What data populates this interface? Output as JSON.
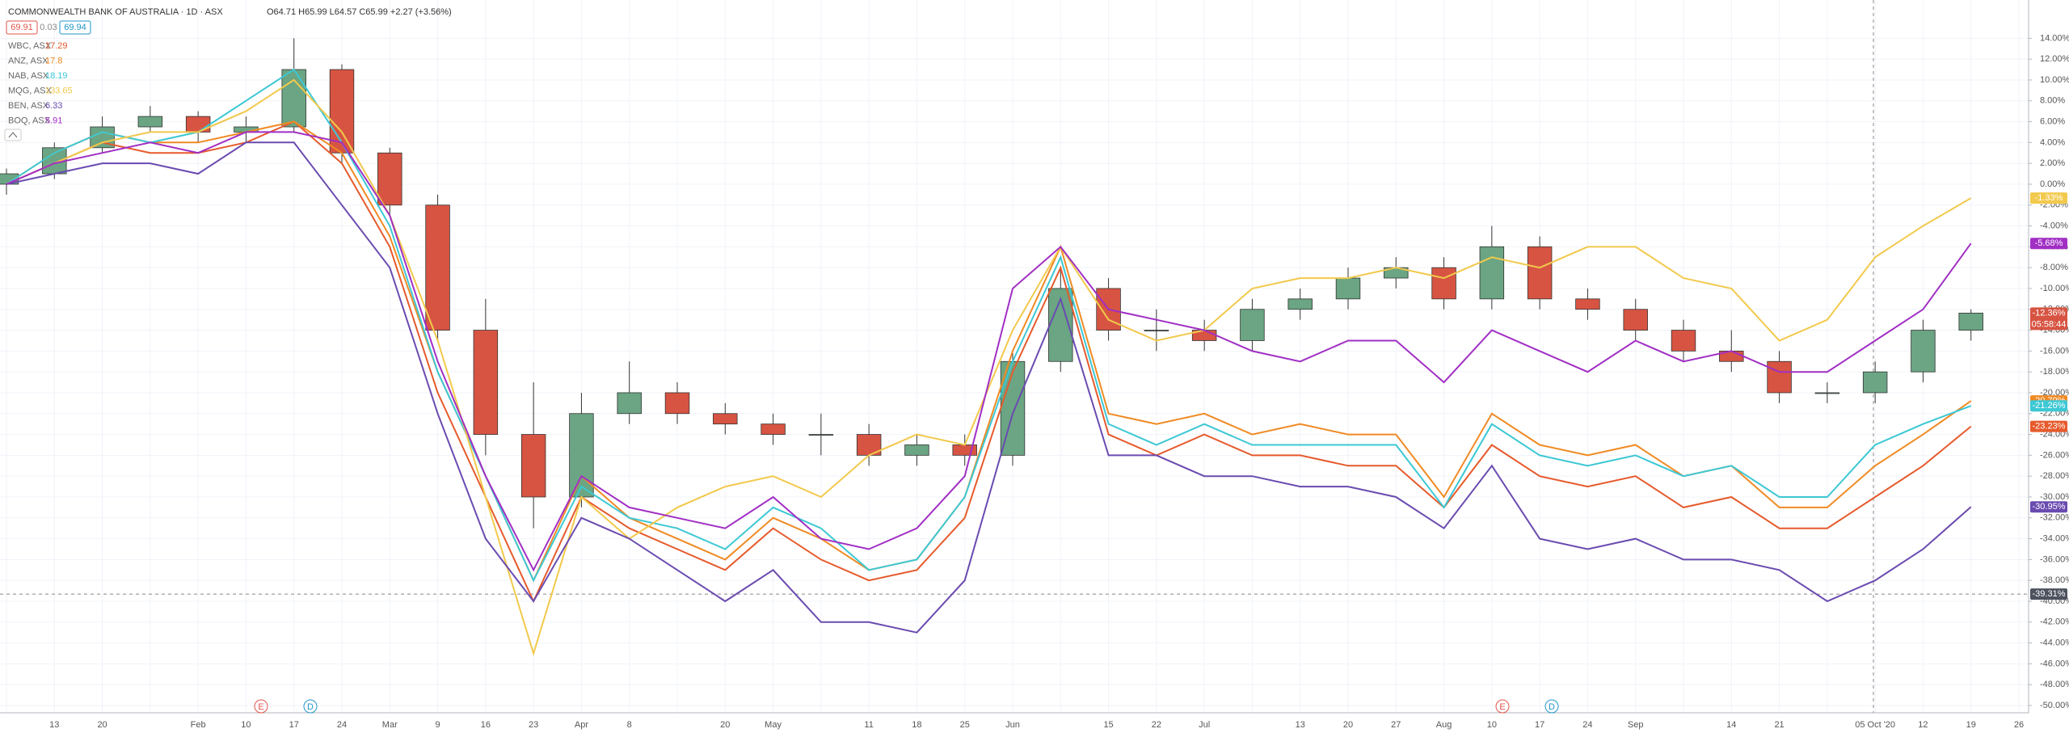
{
  "chart_data": {
    "type": "candlestick-compare",
    "title": "COMMONWEALTH BANK OF AUSTRALIA · 1D · ASX",
    "ohlc_text": "O64.71 H65.99 L64.57 C65.99 +2.27 (+3.56%)",
    "bid": 69.91,
    "spread": 0.03,
    "ask": 69.94,
    "categories": [
      null,
      "13",
      "20",
      null,
      "Feb",
      "10",
      "17",
      "24",
      "Mar",
      "9",
      "16",
      "23",
      "Apr",
      "8",
      null,
      "20",
      "May",
      null,
      "11",
      "18",
      "25",
      "Jun",
      null,
      "15",
      "22",
      "Jul",
      null,
      "13",
      "20",
      "27",
      "Aug",
      "10",
      "17",
      "24",
      "Sep",
      null,
      "14",
      "21",
      null,
      "05 Oct '20",
      "12",
      "19",
      "26"
    ],
    "ylim": [
      -50.7,
      17.67
    ],
    "yticks": [
      {
        "value": 14,
        "label": "14.00%"
      },
      {
        "value": 12,
        "label": "12.00%"
      },
      {
        "value": 10,
        "label": "10.00%"
      },
      {
        "value": 8,
        "label": "8.00%"
      },
      {
        "value": 6,
        "label": "6.00%"
      },
      {
        "value": 4,
        "label": "4.00%"
      },
      {
        "value": 2,
        "label": "2.00%"
      },
      {
        "value": 0,
        "label": "0.00%"
      },
      {
        "value": -2,
        "label": "-2.00%"
      },
      {
        "value": -4,
        "label": "-4.00%"
      },
      {
        "value": -6,
        "label": "-6.00%"
      },
      {
        "value": -8,
        "label": "-8.00%"
      },
      {
        "value": -10,
        "label": "-10.00%"
      },
      {
        "value": -12,
        "label": "-12.00%"
      },
      {
        "value": -14,
        "label": "-14.00%"
      },
      {
        "value": -16,
        "label": "-16.00%"
      },
      {
        "value": -18,
        "label": "-18.00%"
      },
      {
        "value": -20,
        "label": "-20.00%"
      },
      {
        "value": -22,
        "label": "-22.00%"
      },
      {
        "value": -24,
        "label": "-24.00%"
      },
      {
        "value": -26,
        "label": "-26.00%"
      },
      {
        "value": -28,
        "label": "-28.00%"
      },
      {
        "value": -30,
        "label": "-30.00%"
      },
      {
        "value": -32,
        "label": "-32.00%"
      },
      {
        "value": -34,
        "label": "-34.00%"
      },
      {
        "value": -36,
        "label": "-36.00%"
      },
      {
        "value": -38,
        "label": "-38.00%"
      },
      {
        "value": -40,
        "label": "-40.00%"
      },
      {
        "value": -42,
        "label": "-42.00%"
      },
      {
        "value": -44,
        "label": "-44.00%"
      },
      {
        "value": -46,
        "label": "-46.00%"
      },
      {
        "value": -48,
        "label": "-48.00%"
      },
      {
        "value": -50,
        "label": "-50.00%"
      }
    ],
    "grid": true,
    "candles": {
      "up_color": "#6ba583",
      "down_color": "#d75442",
      "last_label": "-12.36%",
      "countdown": "05:58:44",
      "open": [
        0,
        1,
        3.5,
        5.5,
        6.5,
        5,
        5.5,
        11,
        3,
        -2,
        -14,
        -24,
        -30,
        -22,
        -20,
        -22,
        -23,
        -24,
        -24,
        -26,
        -25,
        -26,
        -17,
        -10,
        -14,
        -14,
        -15,
        -12,
        -11,
        -9,
        -8,
        -11,
        -6,
        -11,
        -12,
        -14,
        -16,
        -17,
        -20,
        -20,
        -18,
        -14,
        null
      ],
      "high": [
        1.5,
        4,
        6.5,
        7.5,
        7,
        6.5,
        14,
        11.5,
        3.5,
        -1,
        -11,
        -19,
        -20,
        -17,
        -19,
        -21,
        -22,
        -22,
        -23,
        -24,
        -24,
        -16,
        -8,
        -9,
        -12,
        -13,
        -11,
        -10,
        -8,
        -7,
        -7,
        -4,
        -5,
        -10,
        -11,
        -13,
        -14,
        -16,
        -19,
        -17,
        -13,
        -12,
        null
      ],
      "low": [
        -1,
        0.5,
        3,
        5,
        4,
        4,
        5,
        2,
        -3,
        -15,
        -26,
        -33,
        -31,
        -23,
        -23,
        -24,
        -25,
        -26,
        -27,
        -27,
        -27,
        -27,
        -18,
        -15,
        -16,
        -16,
        -16,
        -13,
        -12,
        -10,
        -12,
        -12,
        -12,
        -13,
        -15,
        -17,
        -18,
        -21,
        -21,
        -21,
        -19,
        -15,
        null
      ],
      "close": [
        1,
        3.5,
        5.5,
        6.5,
        5,
        5.5,
        11,
        3,
        -2,
        -14,
        -24,
        -30,
        -22,
        -20,
        -22,
        -23,
        -24,
        -24,
        -26,
        -25,
        -26,
        -17,
        -10,
        -14,
        -14,
        -15,
        -12,
        -11,
        -9,
        -8,
        -11,
        -6,
        -11,
        -12,
        -14,
        -16,
        -17,
        -20,
        -20,
        -18,
        -14,
        -12.36,
        null
      ]
    },
    "series": [
      {
        "name": "WBC, ASX",
        "price": 17.29,
        "color": "#e65a2c",
        "last_label": "-23.23%",
        "values": [
          0,
          2,
          4,
          3,
          3,
          4,
          6,
          2,
          -6,
          -20,
          -30,
          -40,
          -30,
          -33,
          -35,
          -37,
          -33,
          -36,
          -38,
          -37,
          -32,
          -18,
          -8,
          -24,
          -26,
          -24,
          -26,
          -26,
          -27,
          -27,
          -31,
          -25,
          -28,
          -29,
          -28,
          -31,
          -30,
          -33,
          -33,
          -30,
          -27,
          -23.23,
          null
        ]
      },
      {
        "name": "ANZ, ASX",
        "price": 17.8,
        "color": "#f08a24",
        "last_label": "-20.79%",
        "values": [
          0,
          3,
          5,
          4,
          4,
          5,
          6,
          3,
          -5,
          -18,
          -28,
          -38,
          -28,
          -32,
          -34,
          -36,
          -32,
          -34,
          -37,
          -36,
          -30,
          -16,
          -6,
          -22,
          -23,
          -22,
          -24,
          -23,
          -24,
          -24,
          -30,
          -22,
          -25,
          -26,
          -25,
          -28,
          -27,
          -31,
          -31,
          -27,
          -24,
          -20.79,
          null
        ]
      },
      {
        "name": "NAB, ASX",
        "price": 18.19,
        "color": "#3cc8d4",
        "last_label": "-21.26%",
        "values": [
          0,
          3,
          5,
          4,
          5,
          8,
          11,
          4,
          -4,
          -18,
          -28,
          -38,
          -29,
          -32,
          -33,
          -35,
          -31,
          -33,
          -37,
          -36,
          -30,
          -17,
          -7,
          -23,
          -25,
          -23,
          -25,
          -25,
          -25,
          -25,
          -31,
          -23,
          -26,
          -27,
          -26,
          -28,
          -27,
          -30,
          -30,
          -25,
          -23,
          -21.26,
          null
        ]
      },
      {
        "name": "MQG, ASX",
        "price": 133.65,
        "color": "#f2c94c",
        "last_label": "-1.33%",
        "values": [
          0,
          2,
          4,
          5,
          5,
          7,
          10,
          5,
          -3,
          -15,
          -30,
          -45,
          -30,
          -34,
          -31,
          -29,
          -28,
          -30,
          -26,
          -24,
          -25,
          -14,
          -6,
          -13,
          -15,
          -14,
          -10,
          -9,
          -9,
          -8,
          -9,
          -7,
          -8,
          -6,
          -6,
          -9,
          -10,
          -15,
          -13,
          -7,
          -4,
          -1.33,
          null
        ]
      },
      {
        "name": "BEN, ASX",
        "price": 6.33,
        "color": "#6a4bb0",
        "last_label": "-30.95%",
        "values": [
          0,
          1,
          2,
          2,
          1,
          4,
          4,
          -2,
          -8,
          -22,
          -34,
          -40,
          -32,
          -34,
          -37,
          -40,
          -37,
          -42,
          -42,
          -43,
          -38,
          -22,
          -11,
          -26,
          -26,
          -28,
          -28,
          -29,
          -29,
          -30,
          -33,
          -27,
          -34,
          -35,
          -34,
          -36,
          -36,
          -37,
          -40,
          -38,
          -35,
          -30.95,
          null
        ]
      },
      {
        "name": "BOQ, ASX",
        "price": 5.91,
        "color": "#a12fc4",
        "last_label": "-5.68%",
        "values": [
          0,
          2,
          3,
          4,
          3,
          5,
          5,
          4,
          -3,
          -17,
          -28,
          -37,
          -28,
          -31,
          -32,
          -33,
          -30,
          -34,
          -35,
          -33,
          -28,
          -10,
          -6,
          -12,
          -13,
          -14,
          -16,
          -17,
          -15,
          -15,
          -19,
          -14,
          -16,
          -18,
          -15,
          -17,
          -16,
          -18,
          -18,
          -15,
          -12,
          -5.68,
          null
        ]
      }
    ],
    "crosshair_value": -39.31,
    "crosshair_label": "-39.31%",
    "events": [
      "E",
      "D",
      "E",
      "D"
    ]
  }
}
